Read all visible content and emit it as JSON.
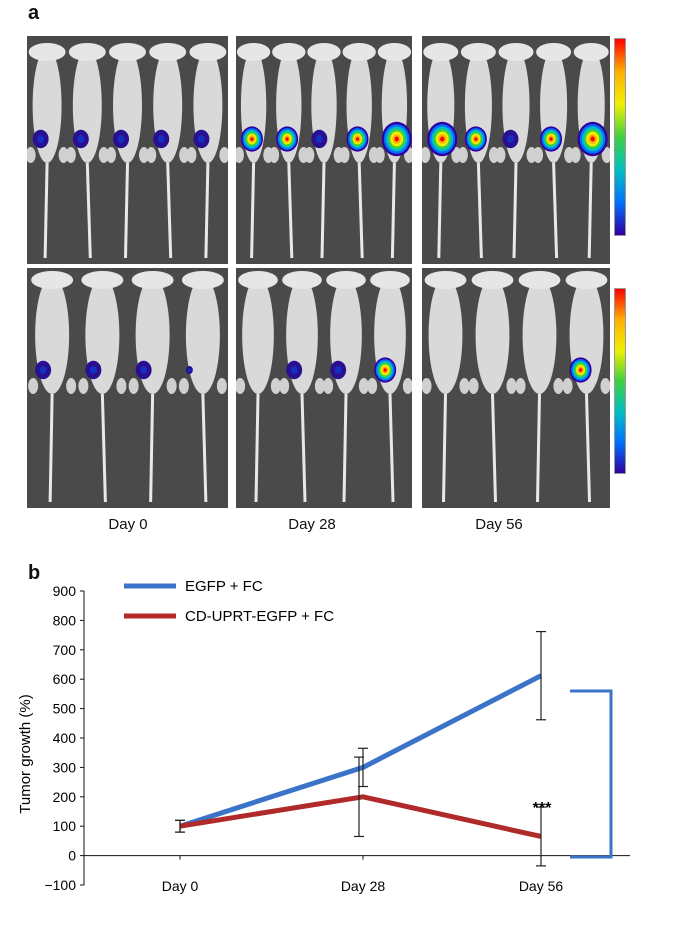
{
  "panel_a": {
    "letter": "a",
    "day_labels": [
      "Day 0",
      "Day 28",
      "Day 56"
    ],
    "rows": [
      {
        "row": "top",
        "panels": [
          {
            "mice": 5,
            "signal_sizes": [
              "small",
              "small",
              "small",
              "small",
              "small"
            ]
          },
          {
            "mice": 5,
            "signal_sizes": [
              "medium",
              "medium",
              "small",
              "medium",
              "large"
            ]
          },
          {
            "mice": 5,
            "signal_sizes": [
              "large",
              "medium",
              "small",
              "medium",
              "large"
            ]
          }
        ]
      },
      {
        "row": "bottom",
        "panels": [
          {
            "mice": 4,
            "signal_sizes": [
              "small",
              "small",
              "small",
              "tiny"
            ]
          },
          {
            "mice": 4,
            "signal_sizes": [
              "none",
              "small",
              "small",
              "medium"
            ]
          },
          {
            "mice": 4,
            "signal_sizes": [
              "none",
              "none",
              "none",
              "medium"
            ]
          }
        ]
      }
    ],
    "colorscale": [
      "#ff0000",
      "#ffb000",
      "#f0f000",
      "#40d040",
      "#00c0c0",
      "#0070ff",
      "#3000a0"
    ]
  },
  "panel_b": {
    "letter": "b",
    "significance": "***"
  },
  "chart_data": {
    "type": "line",
    "categories": [
      "Day 0",
      "Day 28",
      "Day 56"
    ],
    "ylabel": "Tumor growth (%)",
    "ylim": [
      -100,
      900
    ],
    "yticks": [
      -100,
      0,
      100,
      200,
      300,
      400,
      500,
      600,
      700,
      800,
      900
    ],
    "legend": "top-left",
    "series": [
      {
        "name": "EGFP + FC",
        "color": "#3a73c8",
        "values": [
          100,
          300,
          612
        ],
        "errors": [
          20,
          65,
          150
        ]
      },
      {
        "name": "CD-UPRT-EGFP + FC",
        "color": "#b02a2a",
        "values": [
          100,
          200,
          65
        ],
        "errors": [
          20,
          135,
          100
        ]
      }
    ],
    "annotation": "***"
  }
}
